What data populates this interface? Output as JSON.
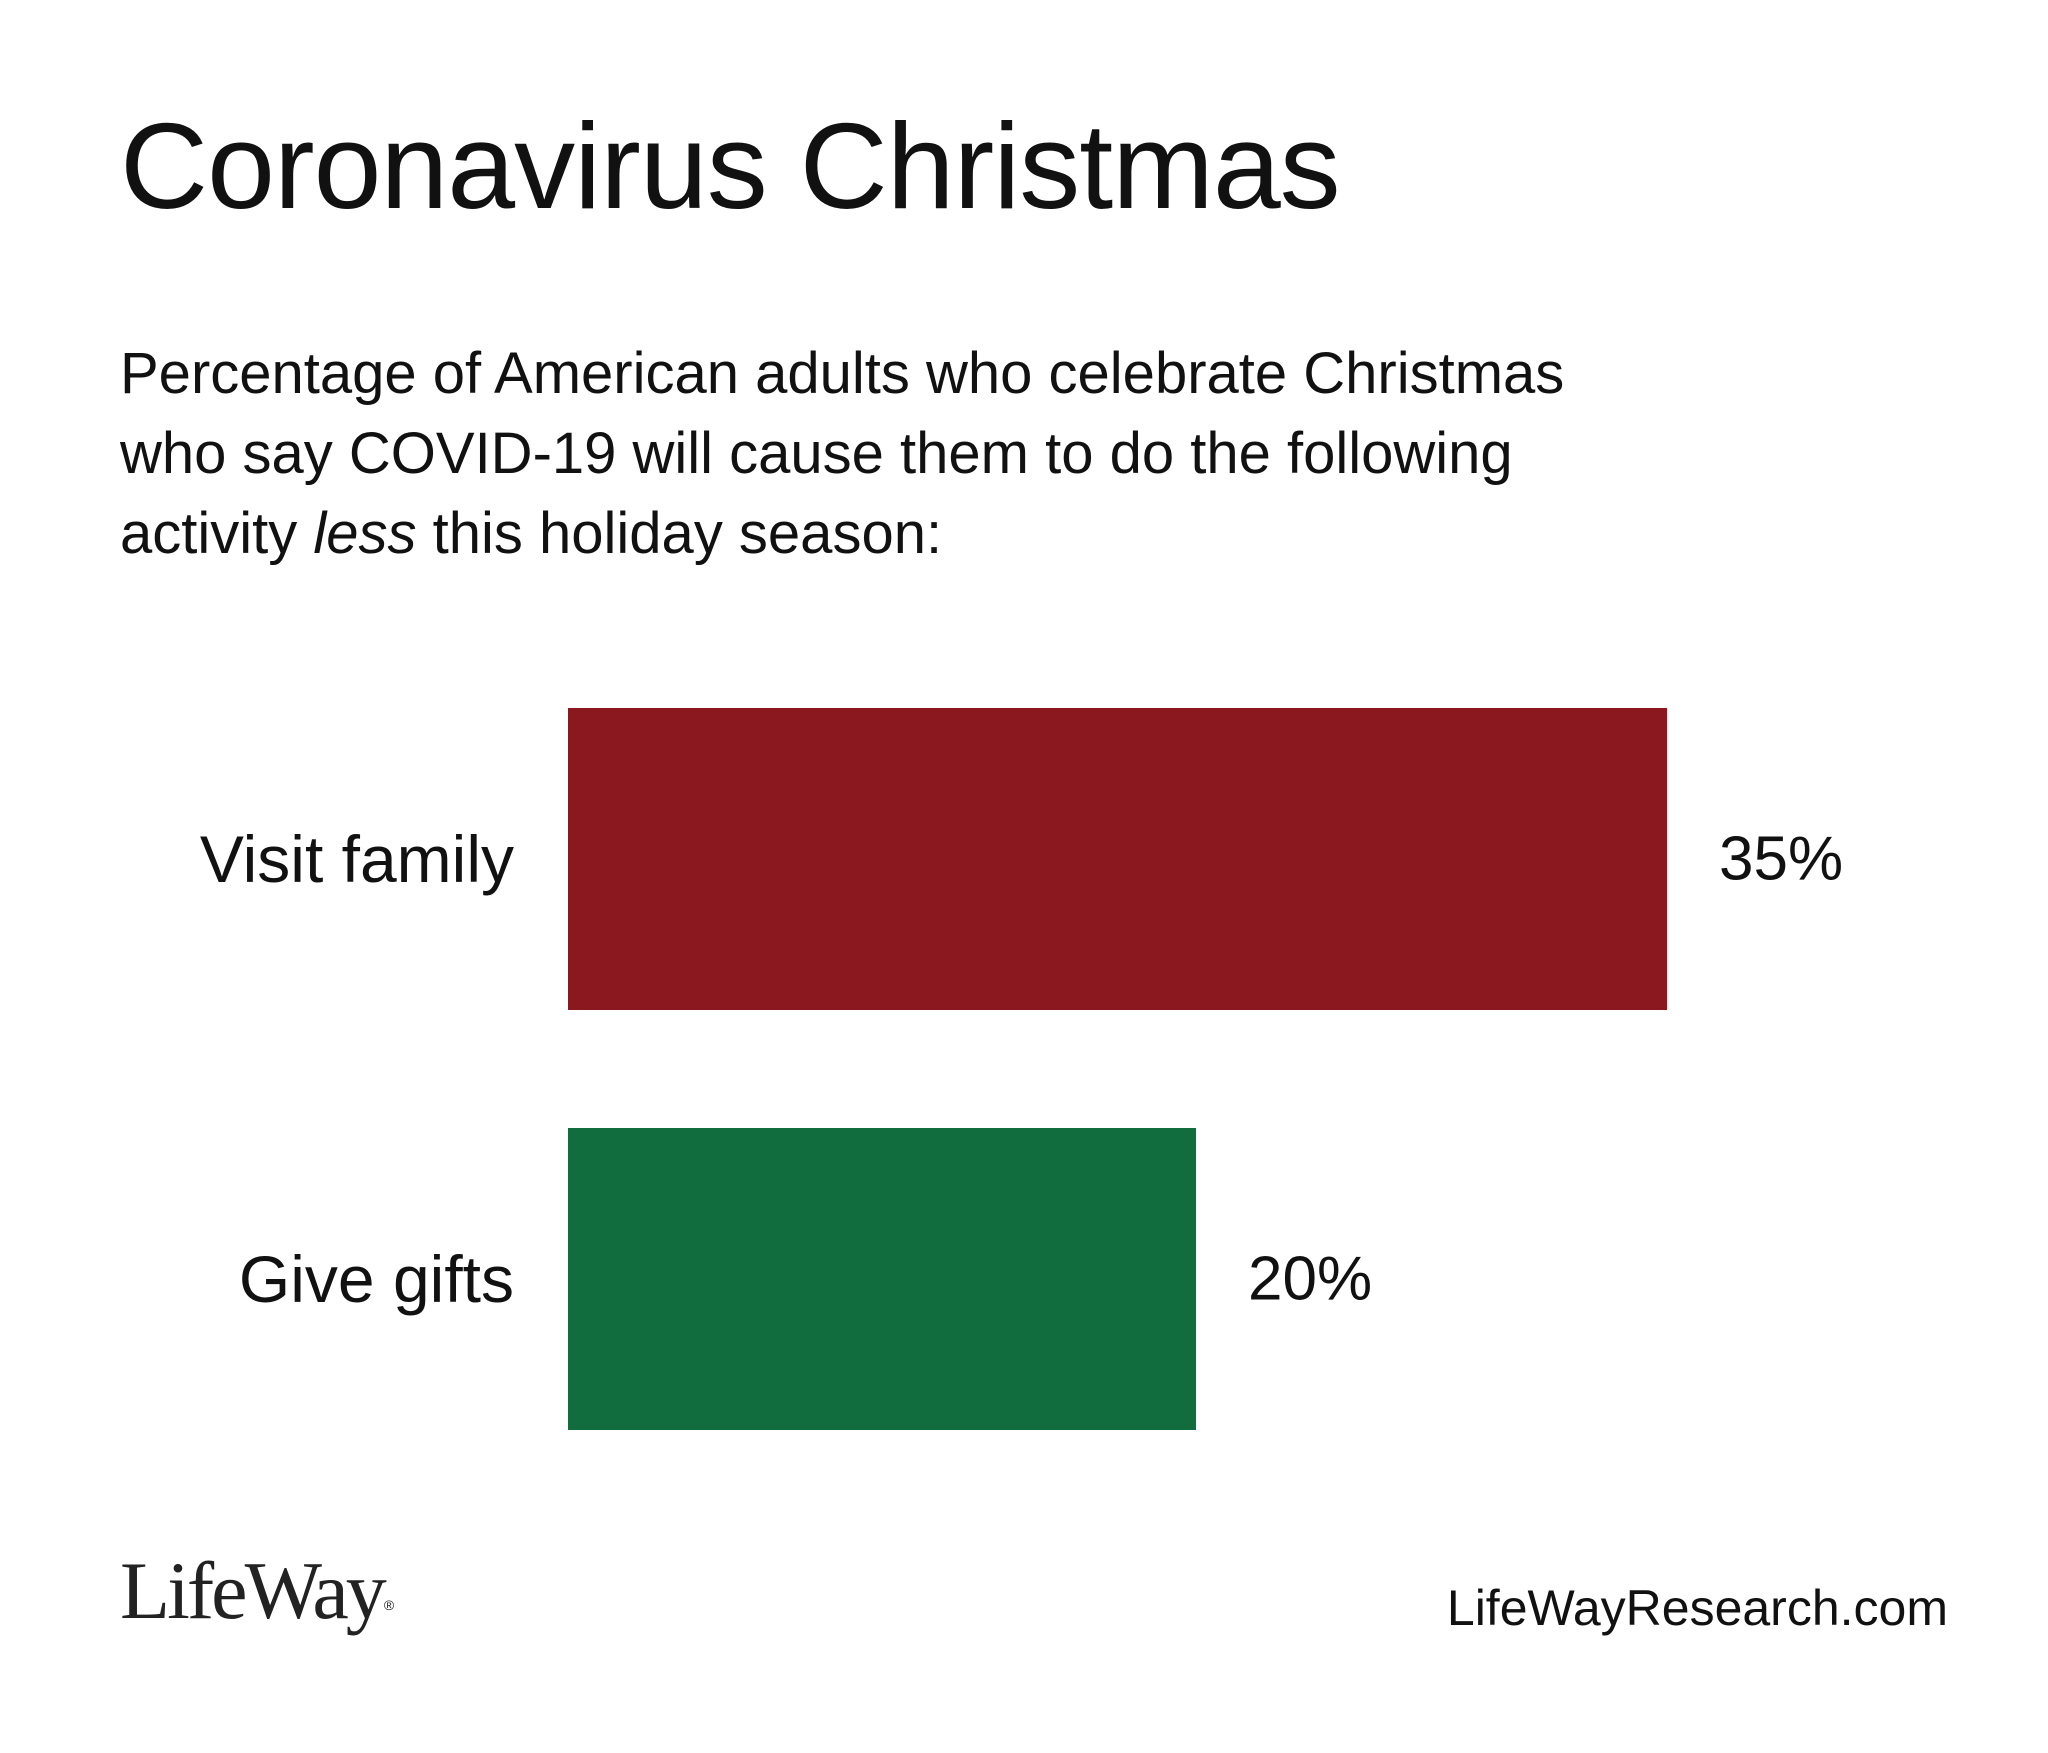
{
  "header": {
    "title": "Coronavirus Christmas",
    "subtitle_part1": "Percentage of American adults who celebrate Christmas who say COVID-19 will cause them to do the following activity ",
    "subtitle_emphasis": "less",
    "subtitle_part2": " this holiday season:"
  },
  "chart_data": {
    "type": "bar",
    "orientation": "horizontal",
    "title": "Coronavirus Christmas",
    "xlabel": "",
    "ylabel": "",
    "categories": [
      "Visit family",
      "Give gifts"
    ],
    "values": [
      35,
      20
    ],
    "value_labels": [
      "35%",
      "20%"
    ],
    "colors": [
      "#8B181E",
      "#116D3E"
    ],
    "xlim": [
      0,
      35
    ],
    "grid": false,
    "legend": "none"
  },
  "footer": {
    "logo_text": "LifeWay",
    "website": "LifeWayResearch.com"
  }
}
